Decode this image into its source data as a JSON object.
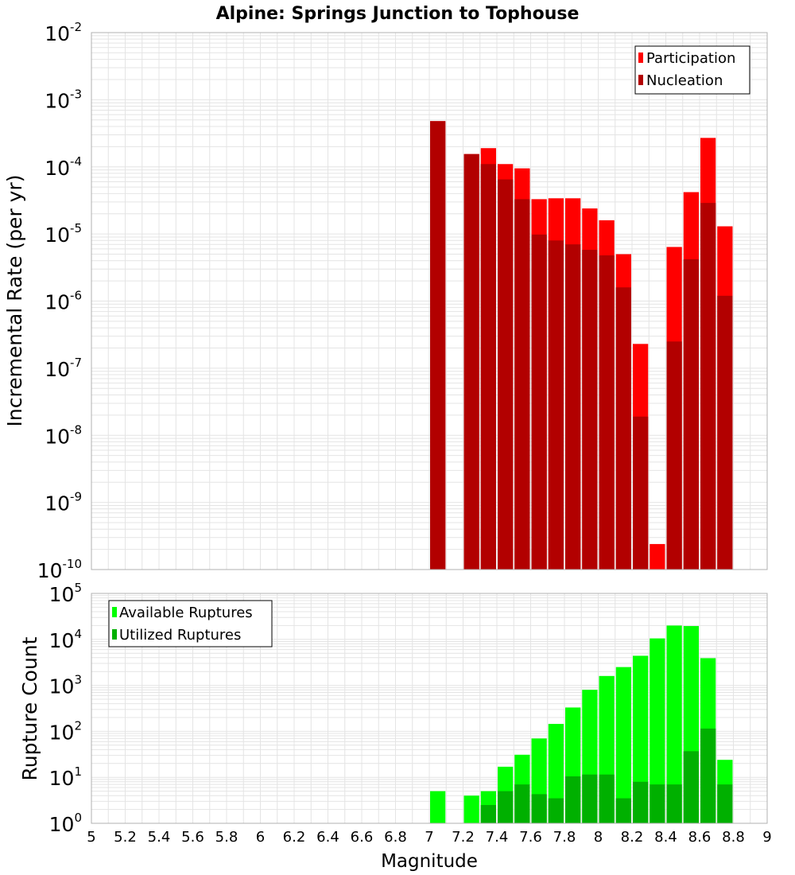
{
  "title": "Alpine: Springs Junction to Tophouse",
  "xlabel": "Magnitude",
  "x_ticks": [
    "5",
    "5.2",
    "5.4",
    "5.6",
    "5.8",
    "6",
    "6.2",
    "6.4",
    "6.6",
    "6.8",
    "7",
    "7.2",
    "7.4",
    "7.6",
    "7.8",
    "8",
    "8.2",
    "8.4",
    "8.6",
    "8.8",
    "9"
  ],
  "chart_data": [
    {
      "type": "bar",
      "ylabel": "Incremental Rate (per yr)",
      "yscale": "log",
      "ylim": [
        1e-10,
        0.01
      ],
      "xlim": [
        5,
        9
      ],
      "bin_width": 0.1,
      "grid": true,
      "legend_position": "top-right",
      "y_ticks": [
        {
          "base": "10",
          "exp": "-10"
        },
        {
          "base": "10",
          "exp": "-9"
        },
        {
          "base": "10",
          "exp": "-8"
        },
        {
          "base": "10",
          "exp": "-7"
        },
        {
          "base": "10",
          "exp": "-6"
        },
        {
          "base": "10",
          "exp": "-5"
        },
        {
          "base": "10",
          "exp": "-4"
        },
        {
          "base": "10",
          "exp": "-3"
        },
        {
          "base": "10",
          "exp": "-2"
        }
      ],
      "x": [
        7.05,
        7.25,
        7.35,
        7.45,
        7.55,
        7.65,
        7.75,
        7.85,
        7.95,
        8.05,
        8.15,
        8.25,
        8.35,
        8.45,
        8.55,
        8.65,
        8.75
      ],
      "series": [
        {
          "name": "Participation",
          "color": "#ff0000",
          "values": [
            0.00048,
            0.000155,
            0.00019,
            0.00011,
            9.5e-05,
            3.3e-05,
            3.4e-05,
            3.4e-05,
            2.4e-05,
            1.6e-05,
            5e-06,
            2.3e-07,
            2.4e-10,
            6.4e-06,
            4.2e-05,
            0.00027,
            1.3e-05
          ]
        },
        {
          "name": "Nucleation",
          "color": "#b20000",
          "values": [
            0.00048,
            0.000155,
            0.00011,
            6.5e-05,
            3.3e-05,
            9.8e-06,
            8e-06,
            7e-06,
            5.8e-06,
            4.8e-06,
            1.6e-06,
            1.9e-08,
            0,
            2.5e-07,
            4.2e-06,
            2.9e-05,
            1.2e-06
          ]
        }
      ]
    },
    {
      "type": "bar",
      "ylabel": "Rupture Count",
      "yscale": "log",
      "ylim": [
        1,
        100000
      ],
      "xlim": [
        5,
        9
      ],
      "bin_width": 0.1,
      "grid": true,
      "legend_position": "top-left",
      "y_ticks": [
        {
          "base": "10",
          "exp": "0"
        },
        {
          "base": "10",
          "exp": "1"
        },
        {
          "base": "10",
          "exp": "2"
        },
        {
          "base": "10",
          "exp": "3"
        },
        {
          "base": "10",
          "exp": "4"
        },
        {
          "base": "10",
          "exp": "5"
        }
      ],
      "x": [
        7.05,
        7.25,
        7.35,
        7.45,
        7.55,
        7.65,
        7.75,
        7.85,
        7.95,
        8.05,
        8.15,
        8.25,
        8.35,
        8.45,
        8.55,
        8.65,
        8.75
      ],
      "series": [
        {
          "name": "Available Ruptures",
          "color": "#00ff00",
          "values": [
            5,
            4,
            5,
            17,
            31,
            70,
            145,
            330,
            800,
            1600,
            2500,
            4400,
            10500,
            20000,
            19500,
            3900,
            24
          ]
        },
        {
          "name": "Utilized Ruptures",
          "color": "#00b000",
          "values": [
            1,
            1,
            2.5,
            5,
            7,
            4.3,
            3.5,
            10.5,
            11.5,
            11.5,
            3.5,
            8,
            7,
            7,
            37,
            115,
            7
          ]
        }
      ]
    }
  ]
}
